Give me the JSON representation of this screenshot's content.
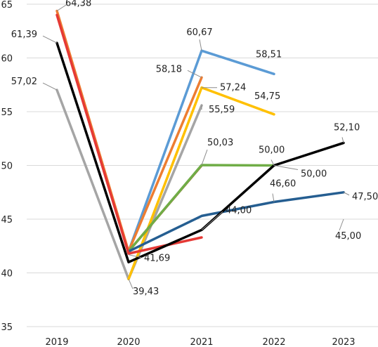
{
  "chart_data": {
    "type": "line",
    "categories": [
      "2019",
      "2020",
      "2021",
      "2022",
      "2023"
    ],
    "ylim": [
      35,
      65
    ],
    "yticks": [
      35,
      40,
      45,
      50,
      55,
      60,
      65
    ],
    "ytick_labels": [
      "35",
      "40",
      "45",
      "50",
      "55",
      "60",
      "65"
    ],
    "grid": true,
    "series": [
      {
        "color": "#a5a5a5",
        "values": [
          57.02,
          39.43,
          55.59,
          null,
          null
        ]
      },
      {
        "color": "#5b9bd5",
        "values": [
          null,
          42.0,
          60.67,
          58.51,
          null
        ]
      },
      {
        "color": "#ed7d31",
        "values": [
          64.38,
          42.0,
          58.18,
          null,
          null
        ]
      },
      {
        "color": "#ffc000",
        "values": [
          null,
          39.43,
          57.24,
          54.75,
          null
        ]
      },
      {
        "color": "#9e480e",
        "values": [
          null,
          42.0,
          50.0,
          null,
          null
        ]
      },
      {
        "color": "#70ad47",
        "values": [
          null,
          42.0,
          50.03,
          50.0,
          null
        ]
      },
      {
        "color": "#255e91",
        "values": [
          null,
          42.0,
          45.3,
          46.6,
          47.5
        ]
      },
      {
        "color": "#e53935",
        "values": [
          64.0,
          41.8,
          43.3,
          null,
          45.0
        ]
      },
      {
        "color": "#000000",
        "values": [
          61.39,
          41.0,
          44.0,
          50.0,
          52.1
        ]
      }
    ],
    "annotations": [
      {
        "text": "64,38",
        "x": "2019",
        "y": 64.38
      },
      {
        "text": "61,39",
        "x": "2019",
        "y": 61.39
      },
      {
        "text": "57,02",
        "x": "2019",
        "y": 57.02
      },
      {
        "text": "41,69",
        "x": "2020",
        "y": 41.69
      },
      {
        "text": "39,43",
        "x": "2020",
        "y": 39.43
      },
      {
        "text": "60,67",
        "x": "2021",
        "y": 60.67
      },
      {
        "text": "58,18",
        "x": "2021",
        "y": 58.18
      },
      {
        "text": "57,24",
        "x": "2021",
        "y": 57.24
      },
      {
        "text": "55,59",
        "x": "2021",
        "y": 55.59
      },
      {
        "text": "50,03",
        "x": "2021",
        "y": 50.03
      },
      {
        "text": "44,00",
        "x": "2021",
        "y": 44.0
      },
      {
        "text": "58,51",
        "x": "2022",
        "y": 58.51
      },
      {
        "text": "54,75",
        "x": "2022",
        "y": 54.75
      },
      {
        "text": "50,00",
        "x": "2022",
        "y": 50.0
      },
      {
        "text": "50,00",
        "x": "2022",
        "y": 50.0
      },
      {
        "text": "46,60",
        "x": "2022",
        "y": 46.6
      },
      {
        "text": "52,10",
        "x": "2023",
        "y": 52.1
      },
      {
        "text": "47,50",
        "x": "2023",
        "y": 47.5
      },
      {
        "text": "45,00",
        "x": "2023",
        "y": 45.0
      }
    ]
  }
}
